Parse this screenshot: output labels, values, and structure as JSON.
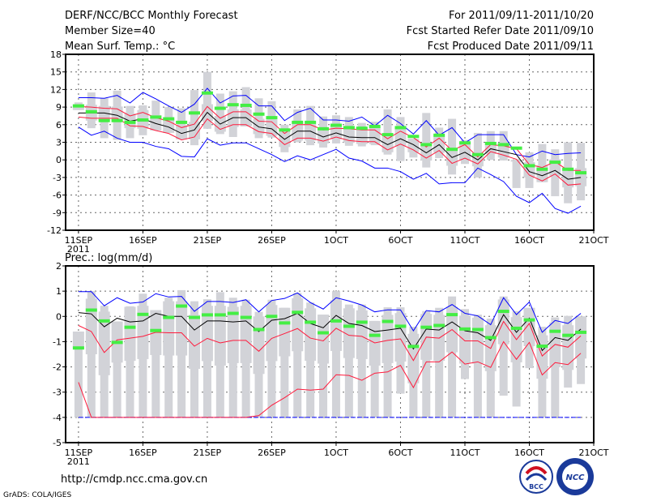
{
  "header": {
    "title": "DERF/NCC/BCC Monthly Forecast",
    "member_size": "Member Size=40",
    "variable": "Mean Surf. Temp.: °C",
    "period": "For 2011/09/11-2011/10/20",
    "start_date": "Fcst Started Refer Date 2011/09/10",
    "produced_date": "Fcst Produced Date 2011/09/11"
  },
  "footer": {
    "url": "http://cmdp.ncc.cma.gov.cn",
    "grads": "GrADS: COLA/IGES",
    "logo_bcc": "BCC",
    "logo_ncc": "NCC"
  },
  "colors": {
    "max_min": "#0000ff",
    "percentile": "#ff1a3c",
    "mean": "#000000",
    "obs": "#44ee44",
    "box": "#d2d3d8"
  },
  "chart_data": [
    {
      "type": "box",
      "title": "Mean Surf. Temp.: °C",
      "ylim": [
        -12,
        18
      ],
      "yticks": [
        "-12",
        "-9",
        "-6",
        "-3",
        "0",
        "3",
        "6",
        "9",
        "12",
        "15",
        "18"
      ],
      "ytick_values": [
        -12,
        -9,
        -6,
        -3,
        0,
        3,
        6,
        9,
        12,
        15,
        18
      ],
      "xlim_days": [
        -1,
        40
      ],
      "xticks": [
        "11SEP",
        "16SEP",
        "21SEP",
        "26SEP",
        "1OCT",
        "6OCT",
        "11OCT",
        "16OCT",
        "21OCT"
      ],
      "xtick_days": [
        0,
        5,
        10,
        15,
        20,
        25,
        30,
        35,
        40
      ],
      "x_year_label": "2011",
      "grid": true,
      "max": [
        10.6,
        10.6,
        10.5,
        11.0,
        9.7,
        11.5,
        10.4,
        9.2,
        8.1,
        9.5,
        12.2,
        9.7,
        10.9,
        11.0,
        9.2,
        9.2,
        6.7,
        8.1,
        8.8,
        6.8,
        6.8,
        6.6,
        7.3,
        5.8,
        7.6,
        6.2,
        4.4,
        6.7,
        4.2,
        5.5,
        2.9,
        4.3,
        4.3,
        4.3,
        0.9,
        0.5,
        1.5,
        0.9,
        1.1,
        1.2
      ],
      "min": [
        5.6,
        4.2,
        4.9,
        3.7,
        3.0,
        3.0,
        2.3,
        1.9,
        0.6,
        0.5,
        3.6,
        2.5,
        2.9,
        2.9,
        1.9,
        0.9,
        -0.3,
        0.7,
        0.0,
        0.9,
        1.8,
        0.3,
        -0.2,
        -1.4,
        -1.4,
        -2.0,
        -3.3,
        -2.3,
        -4.1,
        -3.9,
        -3.9,
        -1.4,
        -2.5,
        -3.7,
        -6.2,
        -7.3,
        -5.7,
        -8.3,
        -9.1,
        -7.9
      ],
      "mean": [
        8.0,
        8.0,
        8.0,
        7.6,
        6.6,
        7.0,
        6.2,
        5.6,
        4.5,
        5.1,
        8.1,
        6.1,
        7.2,
        7.2,
        5.6,
        5.3,
        3.5,
        4.9,
        4.9,
        3.9,
        4.6,
        3.9,
        3.8,
        3.8,
        2.6,
        3.6,
        2.6,
        1.2,
        2.6,
        0.4,
        1.3,
        0.0,
        1.9,
        1.4,
        0.9,
        -2.0,
        -2.7,
        -1.8,
        -3.3,
        -3.0
      ],
      "upper": [
        9.1,
        9.0,
        8.8,
        8.7,
        7.5,
        8.1,
        7.2,
        6.6,
        5.5,
        6.1,
        9.1,
        7.1,
        8.2,
        8.2,
        6.6,
        6.5,
        4.5,
        6.0,
        6.0,
        5.1,
        5.4,
        5.3,
        5.1,
        5.1,
        3.6,
        4.9,
        3.8,
        2.2,
        3.7,
        1.6,
        2.6,
        0.5,
        2.6,
        2.4,
        1.9,
        -0.8,
        -1.3,
        -0.3,
        -1.8,
        -1.8
      ],
      "lower": [
        7.3,
        7.1,
        7.1,
        7.1,
        5.8,
        5.7,
        5.0,
        4.5,
        3.4,
        3.9,
        7.0,
        5.2,
        6.0,
        6.0,
        4.8,
        4.5,
        2.6,
        3.7,
        3.7,
        3.2,
        3.9,
        3.3,
        3.1,
        3.1,
        1.7,
        2.7,
        1.7,
        0.3,
        1.6,
        -0.6,
        0.3,
        -0.7,
        1.4,
        0.8,
        0.1,
        -2.6,
        -3.6,
        -2.4,
        -4.3,
        -4.1
      ],
      "whisker_hi": [
        9.8,
        11.5,
        10.5,
        11.8,
        9.2,
        9.3,
        10.1,
        9.0,
        8.8,
        11.9,
        15.0,
        11.3,
        11.7,
        12.4,
        10.5,
        10.0,
        6.0,
        8.6,
        9.2,
        7.4,
        7.6,
        7.3,
        6.3,
        6.5,
        8.6,
        7.3,
        3.6,
        8.0,
        5.5,
        7.0,
        3.4,
        4.6,
        4.9,
        4.9,
        0.0,
        1.3,
        2.7,
        1.8,
        3.0,
        2.9
      ],
      "whisker_lo": [
        8.5,
        5.4,
        3.7,
        3.4,
        3.7,
        4.2,
        5.0,
        4.6,
        3.5,
        2.5,
        5.3,
        4.4,
        3.9,
        5.7,
        3.7,
        3.8,
        1.3,
        3.0,
        2.5,
        2.1,
        2.8,
        2.4,
        2.3,
        2.5,
        0.9,
        -0.2,
        0.4,
        -1.3,
        0.3,
        -2.5,
        -0.7,
        -3.0,
        0.0,
        -0.1,
        -4.8,
        -4.8,
        -3.8,
        -6.2,
        -7.4,
        -6.9
      ],
      "observed": [
        9.2,
        8.2,
        6.7,
        6.7,
        6.4,
        6.8,
        7.3,
        7.0,
        6.4,
        8.0,
        11.4,
        8.8,
        9.4,
        9.3,
        7.8,
        7.2,
        5.1,
        6.4,
        6.4,
        5.3,
        5.9,
        5.5,
        5.4,
        5.7,
        4.3,
        5.5,
        4.0,
        2.6,
        4.2,
        1.8,
        2.9,
        0.9,
        2.8,
        2.6,
        2.0,
        -1.0,
        -1.6,
        -0.4,
        -1.6,
        -2.2
      ]
    },
    {
      "type": "box",
      "title": "Prec.: log(mm/d)",
      "ylim": [
        -5,
        2
      ],
      "yticks": [
        "-5",
        "-4",
        "-3",
        "-2",
        "-1",
        "0",
        "1",
        "2"
      ],
      "ytick_values": [
        -5,
        -4,
        -3,
        -2,
        -1,
        0,
        1,
        2
      ],
      "xlim_days": [
        -1,
        40
      ],
      "xticks": [
        "11SEP",
        "16SEP",
        "21SEP",
        "26SEP",
        "1OCT",
        "6OCT",
        "11OCT",
        "16OCT",
        "21OCT"
      ],
      "xtick_days": [
        0,
        5,
        10,
        15,
        20,
        25,
        30,
        35,
        40
      ],
      "x_year_label": "2011",
      "grid": true,
      "max": [
        0.98,
        0.98,
        0.42,
        0.74,
        0.52,
        0.57,
        0.9,
        0.77,
        0.79,
        0.2,
        0.59,
        0.59,
        0.55,
        0.66,
        0.18,
        0.63,
        0.71,
        0.93,
        0.55,
        0.29,
        0.74,
        0.61,
        0.45,
        0.18,
        0.26,
        0.26,
        -0.57,
        0.23,
        0.18,
        0.47,
        0.12,
        0.02,
        -0.33,
        0.74,
        0.07,
        0.57,
        -0.63,
        -0.16,
        -0.28,
        0.12
      ],
      "min": [
        -4,
        -4,
        -4,
        -4,
        -4,
        -4,
        -4,
        -4,
        -4,
        -4,
        -4,
        -4,
        -4,
        -4,
        -4,
        -4,
        -4,
        -4,
        -4,
        -4,
        -4,
        -4,
        -4,
        -4,
        -4,
        -4,
        -4,
        -4,
        -4,
        -4,
        -4,
        -4,
        -4,
        -4,
        -4,
        -4,
        -4,
        -4,
        -4,
        -4
      ],
      "mean": [
        0.15,
        0.1,
        -0.41,
        -0.07,
        -0.22,
        -0.18,
        0.12,
        0.0,
        0.0,
        -0.54,
        -0.18,
        -0.18,
        -0.22,
        -0.18,
        -0.6,
        -0.15,
        -0.09,
        0.12,
        -0.28,
        -0.45,
        0.04,
        -0.28,
        -0.36,
        -0.6,
        -0.54,
        -0.47,
        -1.29,
        -0.5,
        -0.54,
        -0.22,
        -0.57,
        -0.65,
        -0.95,
        0.07,
        -0.63,
        -0.07,
        -1.35,
        -0.84,
        -0.95,
        -0.5
      ],
      "upper": [
        -0.36,
        -0.6,
        -1.43,
        -0.93,
        -0.86,
        -0.79,
        -0.63,
        -0.65,
        -0.65,
        -1.18,
        -0.87,
        -1.05,
        -0.95,
        -0.95,
        -1.38,
        -0.87,
        -0.68,
        -0.48,
        -0.86,
        -0.97,
        -0.47,
        -0.75,
        -0.79,
        -1.05,
        -0.95,
        -0.89,
        -1.75,
        -0.82,
        -0.86,
        -0.52,
        -0.97,
        -0.97,
        -1.27,
        -0.2,
        -0.92,
        -0.28,
        -1.57,
        -1.11,
        -1.22,
        -0.77
      ],
      "lower": [
        -2.61,
        -4,
        -4,
        -4,
        -4,
        -4,
        -4,
        -4,
        -4,
        -4,
        -4,
        -4,
        -4,
        -4,
        -3.93,
        -3.52,
        -3.22,
        -2.88,
        -2.92,
        -2.88,
        -2.31,
        -2.34,
        -2.53,
        -2.25,
        -2.2,
        -1.94,
        -2.82,
        -1.8,
        -1.8,
        -1.41,
        -1.89,
        -1.8,
        -2.02,
        -1.0,
        -1.7,
        -1.03,
        -2.32,
        -1.83,
        -1.91,
        -1.46
      ],
      "whisker_hi": [
        -0.6,
        1.0,
        0.42,
        -0.2,
        0.4,
        0.9,
        0.25,
        0.74,
        1.04,
        0.6,
        0.68,
        0.96,
        0.74,
        0.66,
        0.18,
        0.66,
        0.34,
        0.93,
        0.55,
        0.07,
        1.0,
        0.47,
        0.47,
        -0.18,
        0.36,
        0.36,
        -0.41,
        0.21,
        0.34,
        0.79,
        0.29,
        0.07,
        -0.09,
        0.79,
        0.21,
        0.34,
        -0.41,
        -0.04,
        0.02,
        0.0
      ],
      "whisker_lo": [
        -4,
        -4,
        -4,
        -4,
        -4,
        -4,
        -4,
        -4,
        -4,
        -4,
        -4,
        -4,
        -4,
        -4,
        -4,
        -4,
        -4,
        -4,
        -4,
        -4,
        -4,
        -4,
        -4,
        -4,
        -4,
        -3.06,
        -4,
        -4,
        -4,
        -4,
        -2.48,
        -4,
        -4,
        -3.14,
        -3.57,
        -2.05,
        -4,
        -4,
        -2.82,
        -2.68
      ],
      "observed": [
        -1.25,
        0.25,
        -0.18,
        -1.03,
        -0.43,
        0.08,
        -0.56,
        -0.04,
        0.41,
        -0.04,
        0.06,
        0.06,
        0.12,
        -0.04,
        -0.52,
        0.0,
        -0.26,
        0.16,
        -0.23,
        -0.65,
        -0.18,
        -0.39,
        -0.23,
        -0.75,
        -0.2,
        -0.39,
        -1.19,
        -0.43,
        -0.36,
        0.07,
        -0.5,
        -0.52,
        -0.84,
        0.2,
        -0.47,
        -0.14,
        -1.18,
        -0.59,
        -0.75,
        -0.63
      ]
    }
  ]
}
